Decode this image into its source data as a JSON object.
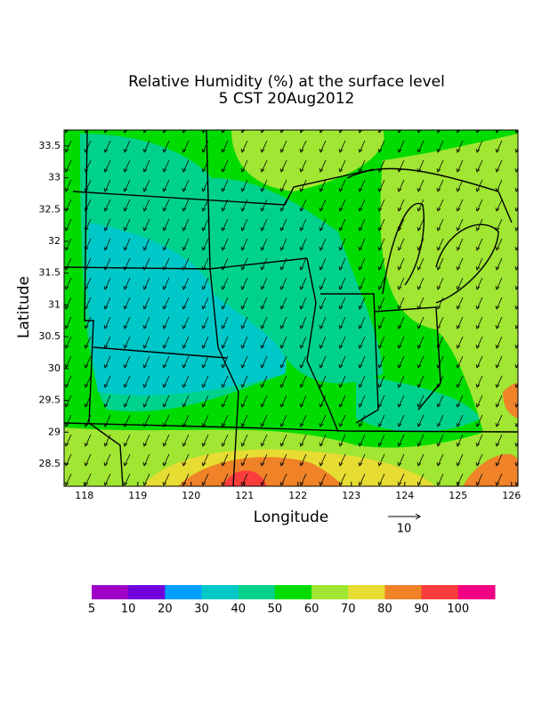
{
  "map": {
    "title": "Relative Humidity (%) at the surface level",
    "subtitle": "5 CST 20Aug2012",
    "x_axis": {
      "label": "Longitude",
      "range": [
        117.62,
        126.12
      ],
      "ticks": [
        118,
        119,
        120,
        121,
        122,
        123,
        124,
        125,
        126
      ]
    },
    "y_axis": {
      "label": "Latitude",
      "range": [
        28.15,
        33.75
      ],
      "ticks": [
        28.5,
        29,
        29.5,
        30,
        30.5,
        31,
        31.5,
        32,
        32.5,
        33,
        33.5
      ]
    },
    "vector_scale": 10,
    "colorbar": {
      "levels": [
        5,
        10,
        20,
        30,
        40,
        50,
        60,
        70,
        80,
        90,
        100
      ],
      "colors": [
        "#a000c8",
        "#7000dc",
        "#00a0ff",
        "#00c8c8",
        "#00d28c",
        "#00dc00",
        "#a0e632",
        "#e6dc32",
        "#f08228",
        "#fa3c3c",
        "#f00082"
      ]
    }
  }
}
